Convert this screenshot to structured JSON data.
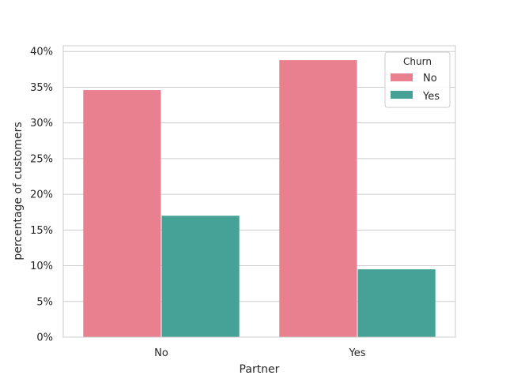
{
  "chart_data": {
    "type": "bar",
    "title": "",
    "xlabel": "Partner",
    "ylabel": "percentage of customers",
    "categories": [
      "No",
      "Yes"
    ],
    "series": [
      {
        "name": "No",
        "values": [
          34.6,
          38.8
        ],
        "color": "#e8808f"
      },
      {
        "name": "Yes",
        "values": [
          17.0,
          9.5
        ],
        "color": "#46a197"
      }
    ],
    "ylim": [
      0,
      40.8
    ],
    "yticks": [
      0,
      5,
      10,
      15,
      20,
      25,
      30,
      35,
      40
    ],
    "ytick_labels": [
      "0%",
      "5%",
      "10%",
      "15%",
      "20%",
      "25%",
      "30%",
      "35%",
      "40%"
    ],
    "grid": true,
    "legend": {
      "title": "Churn",
      "placement": "top-right"
    }
  }
}
